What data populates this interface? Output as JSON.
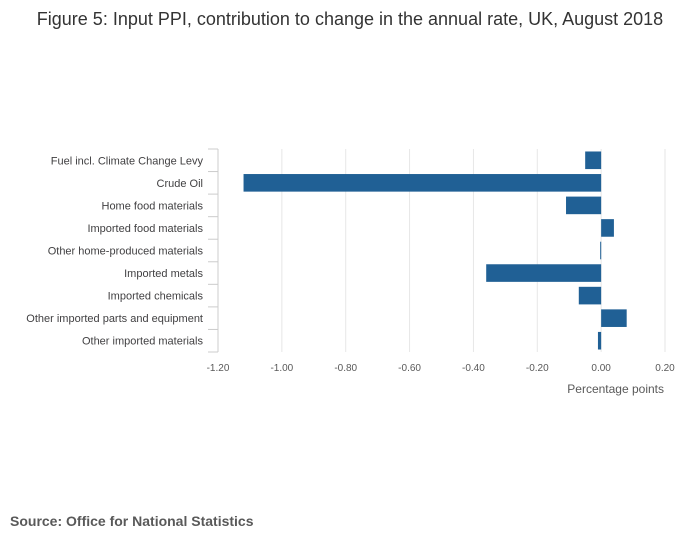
{
  "title": "Figure 5: Input PPI, contribution to change in the annual rate, UK, August 2018",
  "source": "Source: Office for National Statistics",
  "chart_data": {
    "type": "bar",
    "orientation": "horizontal",
    "title": "Figure 5: Input PPI, contribution to change in the annual rate, UK, August 2018",
    "xlabel": "Percentage points",
    "ylabel": "",
    "xlim": [
      -1.2,
      0.2
    ],
    "xticks": [
      -1.2,
      -1.0,
      -0.8,
      -0.6,
      -0.4,
      -0.2,
      0.0,
      0.2
    ],
    "xtick_labels": [
      "-1.20",
      "-1.00",
      "-0.80",
      "-0.60",
      "-0.40",
      "-0.20",
      "0.00",
      "0.20"
    ],
    "grid": true,
    "bar_color": "#206095",
    "categories": [
      "Fuel incl. Climate Change Levy",
      "Crude Oil",
      "Home food materials",
      "Imported food materials",
      "Other home-produced materials",
      "Imported metals",
      "Imported chemicals",
      "Other imported parts and equipment",
      "Other imported materials"
    ],
    "values": [
      -0.05,
      -1.12,
      -0.11,
      0.04,
      -0.003,
      -0.36,
      -0.07,
      0.08,
      -0.01
    ]
  }
}
